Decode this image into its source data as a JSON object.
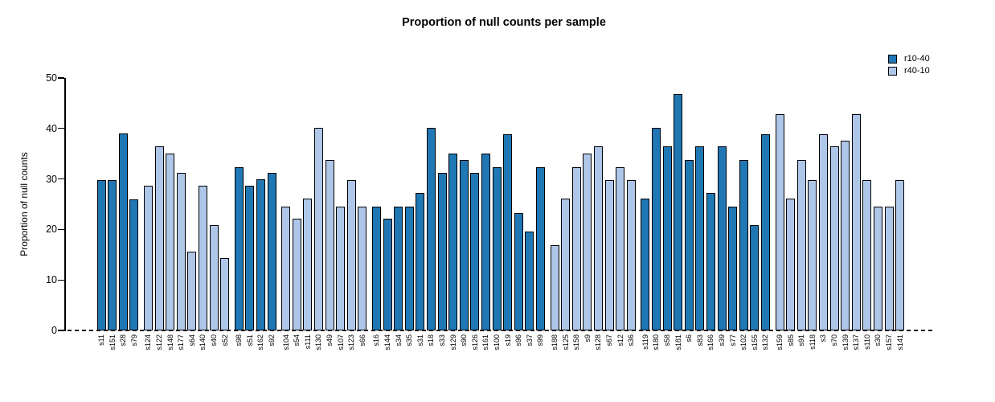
{
  "chart_data": {
    "type": "bar",
    "title": "Proportion of null counts per sample",
    "xlabel": "",
    "ylabel": "Proportion of null counts",
    "ylim": [
      0,
      50
    ],
    "yticks": [
      0,
      10,
      20,
      30,
      40,
      50
    ],
    "grid": false,
    "legend_position": "top-right",
    "baseline_style": "dashed",
    "bar_border_color": "#000000",
    "series": [
      {
        "name": "r10-40",
        "color": "#1f77b4"
      },
      {
        "name": "r40-10",
        "color": "#aec7e8"
      }
    ],
    "groups": [
      {
        "series": "r10-40",
        "bars": [
          {
            "label": "s11",
            "value": 29.8
          },
          {
            "label": "s151",
            "value": 29.8
          },
          {
            "label": "s28",
            "value": 39.0
          },
          {
            "label": "s79",
            "value": 26.0
          }
        ]
      },
      {
        "series": "r40-10",
        "bars": [
          {
            "label": "s124",
            "value": 28.6
          },
          {
            "label": "s122",
            "value": 36.4
          },
          {
            "label": "s148",
            "value": 35.0
          },
          {
            "label": "s177",
            "value": 31.2
          },
          {
            "label": "s64",
            "value": 15.6
          },
          {
            "label": "s140",
            "value": 28.6
          },
          {
            "label": "s40",
            "value": 20.8
          },
          {
            "label": "s52",
            "value": 14.3
          }
        ]
      },
      {
        "series": "r10-40",
        "bars": [
          {
            "label": "s98",
            "value": 32.4
          },
          {
            "label": "s51",
            "value": 28.6
          },
          {
            "label": "s162",
            "value": 30.0
          },
          {
            "label": "s92",
            "value": 31.2
          }
        ]
      },
      {
        "series": "r40-10",
        "bars": [
          {
            "label": "s104",
            "value": 24.5
          },
          {
            "label": "s54",
            "value": 22.1
          },
          {
            "label": "s111",
            "value": 26.1
          },
          {
            "label": "s130",
            "value": 40.2
          },
          {
            "label": "s49",
            "value": 33.7
          },
          {
            "label": "s107",
            "value": 24.5
          },
          {
            "label": "s123",
            "value": 29.8
          },
          {
            "label": "s66",
            "value": 24.5
          }
        ]
      },
      {
        "series": "r10-40",
        "bars": [
          {
            "label": "s16",
            "value": 24.5
          },
          {
            "label": "s144",
            "value": 22.1
          },
          {
            "label": "s34",
            "value": 24.5
          },
          {
            "label": "s35",
            "value": 24.5
          },
          {
            "label": "s31",
            "value": 27.3
          },
          {
            "label": "s18",
            "value": 40.1
          },
          {
            "label": "s33",
            "value": 31.2
          },
          {
            "label": "s129",
            "value": 35.0
          },
          {
            "label": "s90",
            "value": 33.7
          },
          {
            "label": "s126",
            "value": 31.2
          },
          {
            "label": "s161",
            "value": 35.0
          },
          {
            "label": "s100",
            "value": 32.4
          },
          {
            "label": "s19",
            "value": 38.9
          },
          {
            "label": "s96",
            "value": 23.3
          },
          {
            "label": "s37",
            "value": 19.6
          },
          {
            "label": "s99",
            "value": 32.4
          }
        ]
      },
      {
        "series": "r40-10",
        "bars": [
          {
            "label": "s188",
            "value": 16.9
          },
          {
            "label": "s125",
            "value": 26.1
          },
          {
            "label": "s158",
            "value": 32.4
          },
          {
            "label": "s9",
            "value": 35.0
          },
          {
            "label": "s128",
            "value": 36.4
          },
          {
            "label": "s67",
            "value": 29.8
          },
          {
            "label": "s12",
            "value": 32.4
          },
          {
            "label": "s36",
            "value": 29.8
          }
        ]
      },
      {
        "series": "r10-40",
        "bars": [
          {
            "label": "s119",
            "value": 26.1
          },
          {
            "label": "s180",
            "value": 40.1
          },
          {
            "label": "s58",
            "value": 36.4
          },
          {
            "label": "s181",
            "value": 46.8
          },
          {
            "label": "s6",
            "value": 33.7
          },
          {
            "label": "s83",
            "value": 36.4
          },
          {
            "label": "s166",
            "value": 27.3
          },
          {
            "label": "s39",
            "value": 36.4
          },
          {
            "label": "s77",
            "value": 24.5
          },
          {
            "label": "s102",
            "value": 33.7
          },
          {
            "label": "s155",
            "value": 20.8
          },
          {
            "label": "s132",
            "value": 38.9
          }
        ]
      },
      {
        "series": "r40-10",
        "bars": [
          {
            "label": "s159",
            "value": 42.8
          },
          {
            "label": "s85",
            "value": 26.1
          },
          {
            "label": "s91",
            "value": 33.7
          },
          {
            "label": "s118",
            "value": 29.8
          },
          {
            "label": "s3",
            "value": 38.9
          },
          {
            "label": "s70",
            "value": 36.4
          },
          {
            "label": "s139",
            "value": 37.6
          },
          {
            "label": "s137",
            "value": 42.8
          },
          {
            "label": "s110",
            "value": 29.8
          },
          {
            "label": "s30",
            "value": 24.5
          },
          {
            "label": "s157",
            "value": 24.5
          },
          {
            "label": "s141",
            "value": 29.8
          }
        ]
      }
    ]
  }
}
